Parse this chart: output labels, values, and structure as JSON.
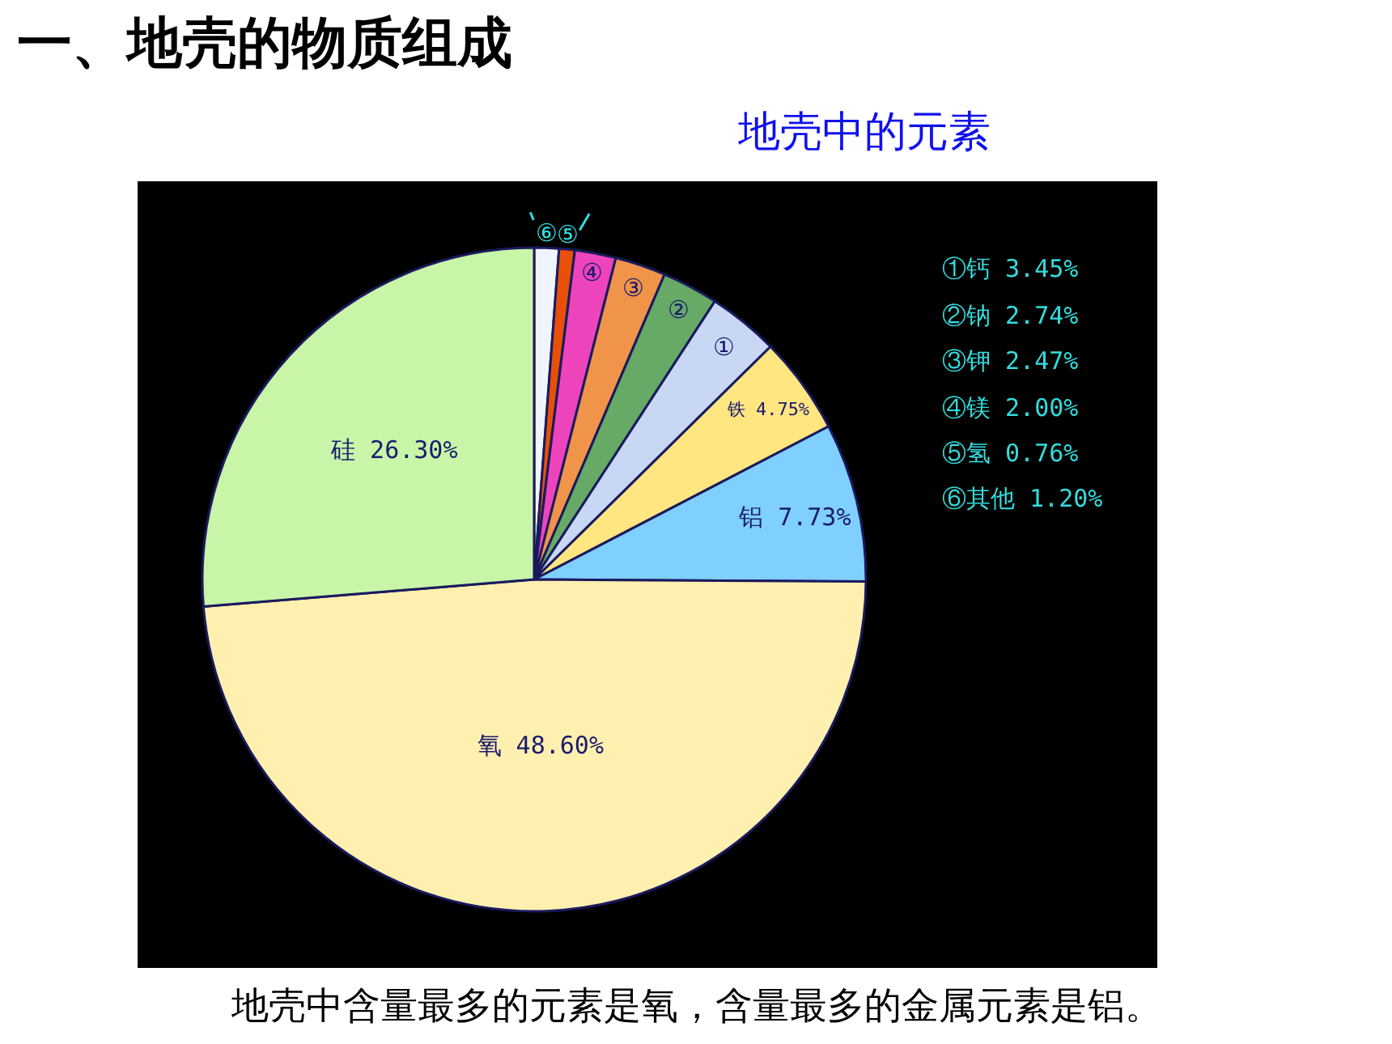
{
  "chart_data": {
    "type": "pie",
    "title": "一、地壳的物质组成",
    "subtitle": "地壳中的元素",
    "categories": [
      "⑥",
      "⑤",
      "④",
      "③",
      "②",
      "①",
      "铁 4.75%",
      "铝 7.73%",
      "氧 48.60%",
      "硅 26.30%"
    ],
    "values": [
      1.2,
      0.76,
      2.0,
      2.47,
      2.74,
      3.45,
      4.75,
      7.73,
      48.6,
      26.3
    ],
    "colors": [
      "#f0f4ff",
      "#e8500a",
      "#ee44bb",
      "#f0944a",
      "#66aa66",
      "#c8d8f4",
      "#ffe680",
      "#80d0ff",
      "#fff0b0",
      "#c8f5a8"
    ],
    "annotations": [
      "①钙 3.45%",
      "②钠 2.74%",
      "③钾 2.47%",
      "④镁 2.00%",
      "⑤氢 0.76%",
      "⑥其他 1.20%",
      "地壳中含量最多的元素是氧，含量最多的金属元素是铝。"
    ],
    "legend": false
  }
}
